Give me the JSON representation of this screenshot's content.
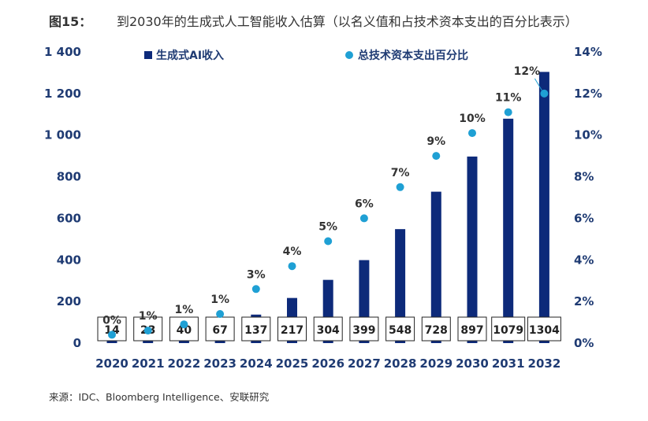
{
  "figure": {
    "label": "图15：",
    "title": "到2030年的生成式人工智能收入估算（以名义值和占技术资本支出的百分比表示）",
    "source": "来源：IDC、Bloomberg Intelligence、安联研究"
  },
  "colors": {
    "bar": "#0d2a7a",
    "dot": "#1fa0d4",
    "axis_text": "#1f3b73"
  },
  "chart_data": {
    "type": "bar",
    "categories": [
      "2020",
      "2021",
      "2022",
      "2023",
      "2024",
      "2025",
      "2026",
      "2027",
      "2028",
      "2029",
      "2030",
      "2031",
      "2032"
    ],
    "series": [
      {
        "name": "生成式AI收入",
        "axis": "left",
        "values": [
          14,
          23,
          40,
          67,
          137,
          217,
          304,
          399,
          548,
          728,
          897,
          1079,
          1304
        ],
        "value_labels": [
          "14",
          "23",
          "40",
          "67",
          "137",
          "217",
          "304",
          "399",
          "548",
          "728",
          "897",
          "1079",
          "1304"
        ]
      },
      {
        "name": "总技术资本支出百分比",
        "axis": "right",
        "type": "scatter",
        "values": [
          0.4,
          0.6,
          0.9,
          1.4,
          2.6,
          3.7,
          4.9,
          6.0,
          7.5,
          9.0,
          10.1,
          11.1,
          12.0
        ],
        "point_labels": [
          "0%",
          "1%",
          "1%",
          "1%",
          "3%",
          "4%",
          "5%",
          "6%",
          "7%",
          "9%",
          "10%",
          "11%",
          "12%"
        ]
      }
    ],
    "left_axis": {
      "ylim": [
        0,
        1400
      ],
      "ticks": [
        0,
        200,
        400,
        600,
        800,
        1000,
        1200,
        1400
      ],
      "tick_labels": [
        "0",
        "200",
        "400",
        "600",
        "800",
        "1 000",
        "1 200",
        "1 400"
      ]
    },
    "right_axis": {
      "ylim": [
        0,
        14
      ],
      "ticks": [
        0,
        2,
        4,
        6,
        8,
        10,
        12,
        14
      ],
      "tick_labels": [
        "0%",
        "2%",
        "4%",
        "6%",
        "8%",
        "10%",
        "12%",
        "14%"
      ]
    },
    "legend_placement": "top",
    "grid": false
  }
}
